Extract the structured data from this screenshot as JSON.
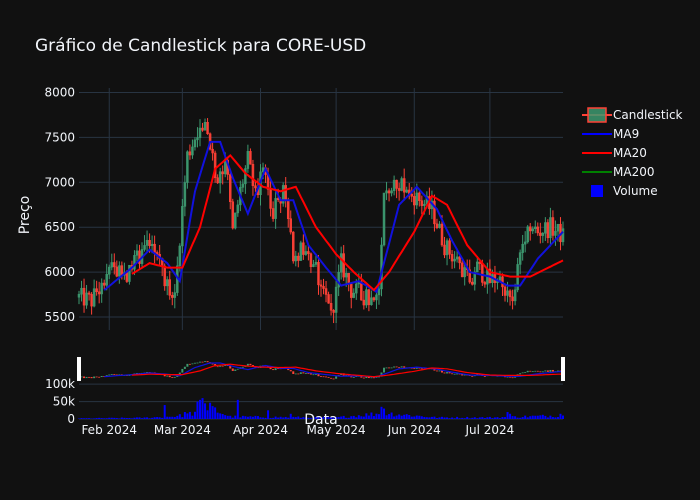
{
  "chart_data": {
    "type": "candlestick",
    "title": "Gráfico de Candlestick para CORE-USD",
    "xlabel": "Data",
    "ylabel": "Preço",
    "ylim": [
      5400,
      8050
    ],
    "yticks": [
      5500,
      6000,
      6500,
      7000,
      7500,
      8000
    ],
    "volume_ticks": [
      0,
      50000,
      100000
    ],
    "volume_tick_labels": [
      "0",
      "50k",
      "100k"
    ],
    "xticks": [
      "2024-02-01",
      "2024-03-01",
      "2024-04-01",
      "2024-05-01",
      "2024-06-01",
      "2024-07-01"
    ],
    "xtick_labels": [
      "Feb 2024",
      "Mar 2024",
      "Apr 2024",
      "May 2024",
      "Jun 2024",
      "Jul 2024"
    ],
    "date_range": [
      "2024-01-20",
      "2024-07-30"
    ],
    "legend_position": "top-right",
    "legend": [
      {
        "name": "Candlestick",
        "color": "#ff4136"
      },
      {
        "name": "MA9",
        "color": "#0000ff"
      },
      {
        "name": "MA20",
        "color": "#ff0000"
      },
      {
        "name": "MA200",
        "color": "#008000"
      },
      {
        "name": "Volume",
        "color": "#0000ff"
      }
    ],
    "colors": {
      "increasing": "#3d9970",
      "decreasing": "#ff4136",
      "ma9": "#1111dd",
      "ma20": "#ff0000",
      "volume": "#0000ff"
    },
    "close_keypoints": [
      [
        "2024-01-20",
        5720
      ],
      [
        "2024-01-25",
        5680
      ],
      [
        "2024-01-30",
        5950
      ],
      [
        "2024-02-03",
        6050
      ],
      [
        "2024-02-08",
        6000
      ],
      [
        "2024-02-13",
        6200
      ],
      [
        "2024-02-17",
        6400
      ],
      [
        "2024-02-20",
        6200
      ],
      [
        "2024-02-24",
        5850
      ],
      [
        "2024-02-27",
        5700
      ],
      [
        "2024-02-29",
        6400
      ],
      [
        "2024-03-03",
        7300
      ],
      [
        "2024-03-06",
        7500
      ],
      [
        "2024-03-09",
        7650
      ],
      [
        "2024-03-12",
        7450
      ],
      [
        "2024-03-15",
        6900
      ],
      [
        "2024-03-18",
        7300
      ],
      [
        "2024-03-21",
        6450
      ],
      [
        "2024-03-24",
        6900
      ],
      [
        "2024-03-27",
        7250
      ],
      [
        "2024-03-30",
        6850
      ],
      [
        "2024-04-02",
        7100
      ],
      [
        "2024-04-06",
        6700
      ],
      [
        "2024-04-10",
        6900
      ],
      [
        "2024-04-14",
        6200
      ],
      [
        "2024-04-18",
        6250
      ],
      [
        "2024-04-22",
        6050
      ],
      [
        "2024-04-26",
        5800
      ],
      [
        "2024-04-30",
        5600
      ],
      [
        "2024-05-03",
        6100
      ],
      [
        "2024-05-07",
        5800
      ],
      [
        "2024-05-11",
        5750
      ],
      [
        "2024-05-15",
        5700
      ],
      [
        "2024-05-18",
        5900
      ],
      [
        "2024-05-20",
        6900
      ],
      [
        "2024-05-24",
        7050
      ],
      [
        "2024-05-28",
        6950
      ],
      [
        "2024-06-03",
        6800
      ],
      [
        "2024-06-08",
        6700
      ],
      [
        "2024-06-13",
        6300
      ],
      [
        "2024-06-17",
        6150
      ],
      [
        "2024-06-21",
        5950
      ],
      [
        "2024-06-26",
        6050
      ],
      [
        "2024-07-01",
        5900
      ],
      [
        "2024-07-05",
        5950
      ],
      [
        "2024-07-09",
        5650
      ],
      [
        "2024-07-12",
        6000
      ],
      [
        "2024-07-16",
        6550
      ],
      [
        "2024-07-20",
        6450
      ],
      [
        "2024-07-25",
        6500
      ],
      [
        "2024-07-30",
        6400
      ]
    ],
    "ma9_keypoints": [
      [
        "2024-01-30",
        5800
      ],
      [
        "2024-02-10",
        6050
      ],
      [
        "2024-02-17",
        6250
      ],
      [
        "2024-02-24",
        6100
      ],
      [
        "2024-02-29",
        5900
      ],
      [
        "2024-03-06",
        6900
      ],
      [
        "2024-03-12",
        7450
      ],
      [
        "2024-03-16",
        7450
      ],
      [
        "2024-03-21",
        7050
      ],
      [
        "2024-03-27",
        6650
      ],
      [
        "2024-04-03",
        7150
      ],
      [
        "2024-04-09",
        6800
      ],
      [
        "2024-04-14",
        6800
      ],
      [
        "2024-04-20",
        6300
      ],
      [
        "2024-04-27",
        6050
      ],
      [
        "2024-05-03",
        5850
      ],
      [
        "2024-05-10",
        5900
      ],
      [
        "2024-05-17",
        5780
      ],
      [
        "2024-05-26",
        6750
      ],
      [
        "2024-06-02",
        6950
      ],
      [
        "2024-06-10",
        6700
      ],
      [
        "2024-06-16",
        6350
      ],
      [
        "2024-06-23",
        6000
      ],
      [
        "2024-07-01",
        5950
      ],
      [
        "2024-07-08",
        5850
      ],
      [
        "2024-07-13",
        5850
      ],
      [
        "2024-07-20",
        6150
      ],
      [
        "2024-07-30",
        6450
      ]
    ],
    "ma20_keypoints": [
      [
        "2024-02-10",
        5980
      ],
      [
        "2024-02-17",
        6100
      ],
      [
        "2024-02-24",
        6050
      ],
      [
        "2024-03-01",
        6050
      ],
      [
        "2024-03-08",
        6500
      ],
      [
        "2024-03-14",
        7150
      ],
      [
        "2024-03-20",
        7300
      ],
      [
        "2024-03-26",
        7100
      ],
      [
        "2024-04-02",
        6950
      ],
      [
        "2024-04-09",
        6900
      ],
      [
        "2024-04-15",
        6950
      ],
      [
        "2024-04-23",
        6500
      ],
      [
        "2024-05-01",
        6200
      ],
      [
        "2024-05-08",
        6000
      ],
      [
        "2024-05-16",
        5800
      ],
      [
        "2024-05-22",
        6000
      ],
      [
        "2024-06-01",
        6450
      ],
      [
        "2024-06-08",
        6850
      ],
      [
        "2024-06-14",
        6750
      ],
      [
        "2024-06-22",
        6300
      ],
      [
        "2024-07-01",
        6000
      ],
      [
        "2024-07-09",
        5950
      ],
      [
        "2024-07-17",
        5950
      ],
      [
        "2024-07-30",
        6130
      ]
    ],
    "volume_keypoints": [
      [
        "2024-01-20",
        2000
      ],
      [
        "2024-02-15",
        4000
      ],
      [
        "2024-02-25",
        8000
      ],
      [
        "2024-03-01",
        12000
      ],
      [
        "2024-03-08",
        25000
      ],
      [
        "2024-03-10",
        45000
      ],
      [
        "2024-03-20",
        8000
      ],
      [
        "2024-04-10",
        6000
      ],
      [
        "2024-05-01",
        5000
      ],
      [
        "2024-05-20",
        20000
      ],
      [
        "2024-06-10",
        5000
      ],
      [
        "2024-07-01",
        5000
      ],
      [
        "2024-07-30",
        12000
      ]
    ],
    "volume_spikes": [
      [
        "2024-02-23",
        40000
      ],
      [
        "2024-03-02",
        20000
      ],
      [
        "2024-03-07",
        50000
      ],
      [
        "2024-03-08",
        55000
      ],
      [
        "2024-03-09",
        60000
      ],
      [
        "2024-03-10",
        45000
      ],
      [
        "2024-03-11",
        25000
      ],
      [
        "2024-03-23",
        55000
      ],
      [
        "2024-04-04",
        25000
      ],
      [
        "2024-04-13",
        15000
      ],
      [
        "2024-05-19",
        35000
      ],
      [
        "2024-05-20",
        30000
      ],
      [
        "2024-07-08",
        20000
      ],
      [
        "2024-07-09",
        15000
      ],
      [
        "2024-07-29",
        15000
      ]
    ]
  }
}
